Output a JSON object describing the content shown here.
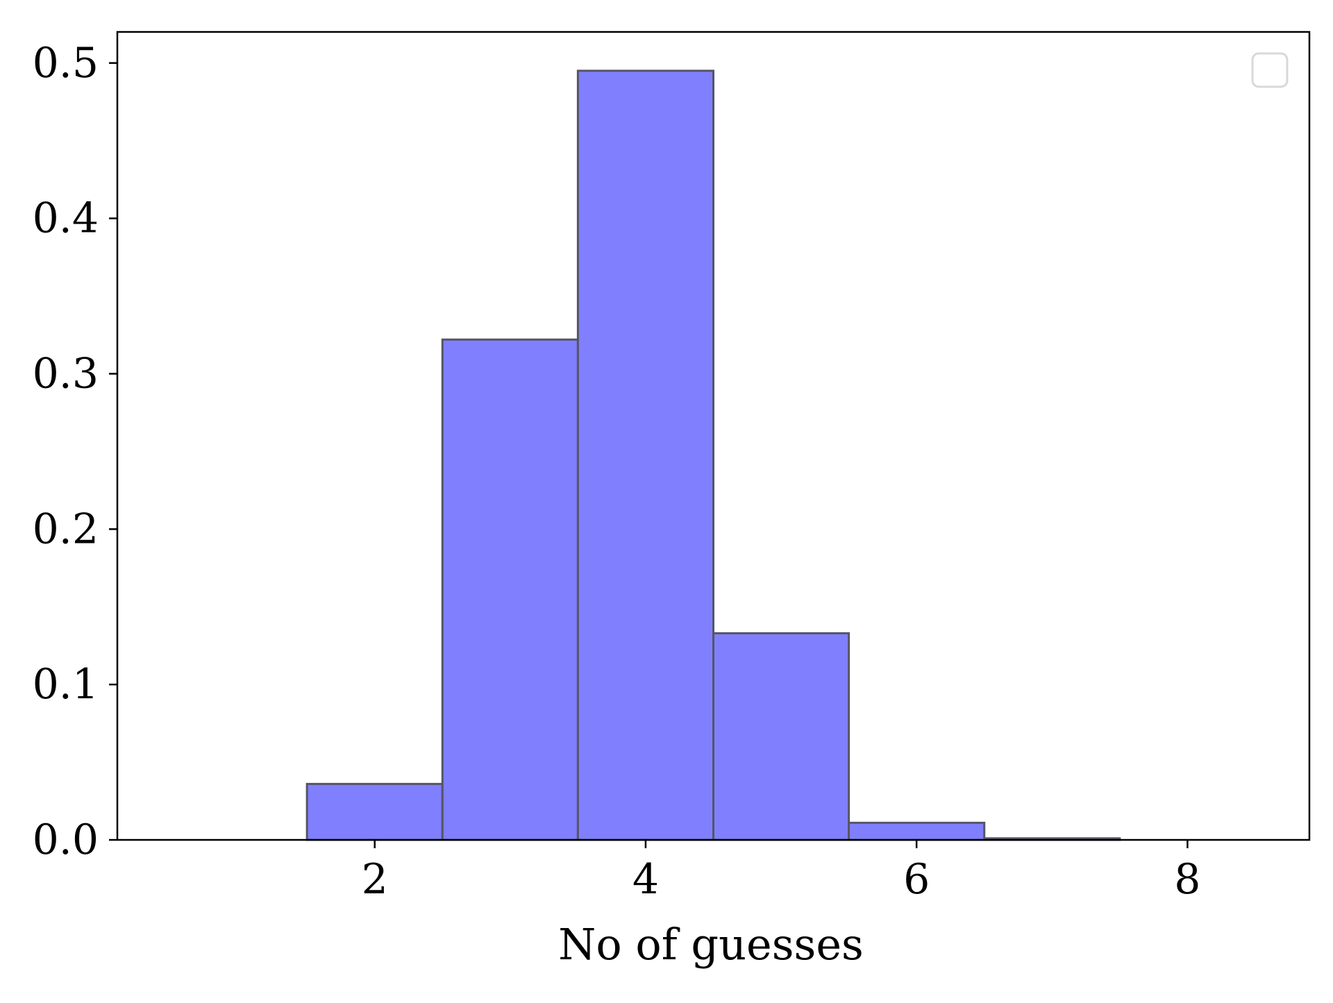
{
  "chart_data": {
    "type": "bar",
    "title": "",
    "xlabel": "No of guesses",
    "ylabel": "",
    "bins": [
      {
        "x0": 0.5,
        "x1": 1.5,
        "value": 0.0
      },
      {
        "x0": 1.5,
        "x1": 2.5,
        "value": 0.036
      },
      {
        "x0": 2.5,
        "x1": 3.5,
        "value": 0.322
      },
      {
        "x0": 3.5,
        "x1": 4.5,
        "value": 0.495
      },
      {
        "x0": 4.5,
        "x1": 5.5,
        "value": 0.133
      },
      {
        "x0": 5.5,
        "x1": 6.5,
        "value": 0.011
      },
      {
        "x0": 6.5,
        "x1": 7.5,
        "value": 0.001
      },
      {
        "x0": 7.5,
        "x1": 8.5,
        "value": 0.0
      }
    ],
    "xlim": [
      0.1,
      8.9
    ],
    "ylim": [
      0.0,
      0.52
    ],
    "xticks": [
      2,
      4,
      6,
      8
    ],
    "yticks": [
      0.0,
      0.1,
      0.2,
      0.3,
      0.4,
      0.5
    ],
    "xtick_labels": [
      "2",
      "4",
      "6",
      "8"
    ],
    "ytick_labels": [
      "0.0",
      "0.1",
      "0.2",
      "0.3",
      "0.4",
      "0.5"
    ],
    "grid": false,
    "legend": {
      "placement": "top-right",
      "entries": []
    },
    "colors": {
      "bar_fill": "#8080ff",
      "bar_edge": "#555566",
      "axis": "#000000",
      "legend_border": "#d8d8d8"
    }
  }
}
